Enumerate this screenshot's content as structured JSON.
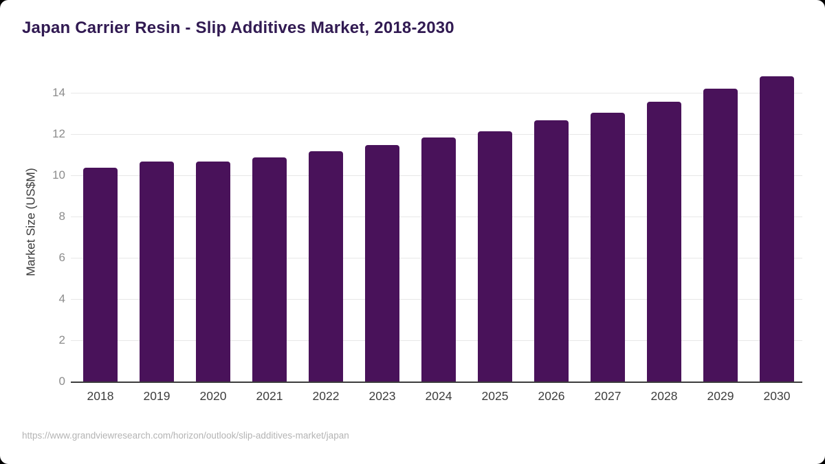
{
  "card": {
    "background": "#ffffff",
    "outer_background": "#000000"
  },
  "header": {
    "title": "Japan Carrier Resin - Slip Additives Market, 2018-2030",
    "title_color": "#311a52"
  },
  "footer": {
    "source_url": "https://www.grandviewresearch.com/horizon/outlook/slip-additives-market/japan"
  },
  "chart_data": {
    "type": "bar",
    "title": "Japan Carrier Resin - Slip Additives Market, 2018-2030",
    "categories": [
      "2018",
      "2019",
      "2020",
      "2021",
      "2022",
      "2023",
      "2024",
      "2025",
      "2026",
      "2027",
      "2028",
      "2029",
      "2030"
    ],
    "values": [
      10.37,
      10.67,
      10.67,
      10.87,
      11.17,
      11.47,
      11.85,
      12.16,
      12.67,
      13.06,
      13.57,
      14.2,
      14.81
    ],
    "xlabel": "",
    "ylabel": "Market Size (US$M)",
    "ylim": [
      0,
      15.18
    ],
    "yticks": [
      0,
      2,
      4,
      6,
      8,
      10,
      12,
      14
    ],
    "grid": "horizontal",
    "legend": "none",
    "bar_color": "#49125A",
    "gridline_color": "#e7e7e7",
    "axis_line_color": "#3b3b3b",
    "y_tick_label_color": "#8c8c8c",
    "x_tick_label_color": "#3d3d3d"
  }
}
